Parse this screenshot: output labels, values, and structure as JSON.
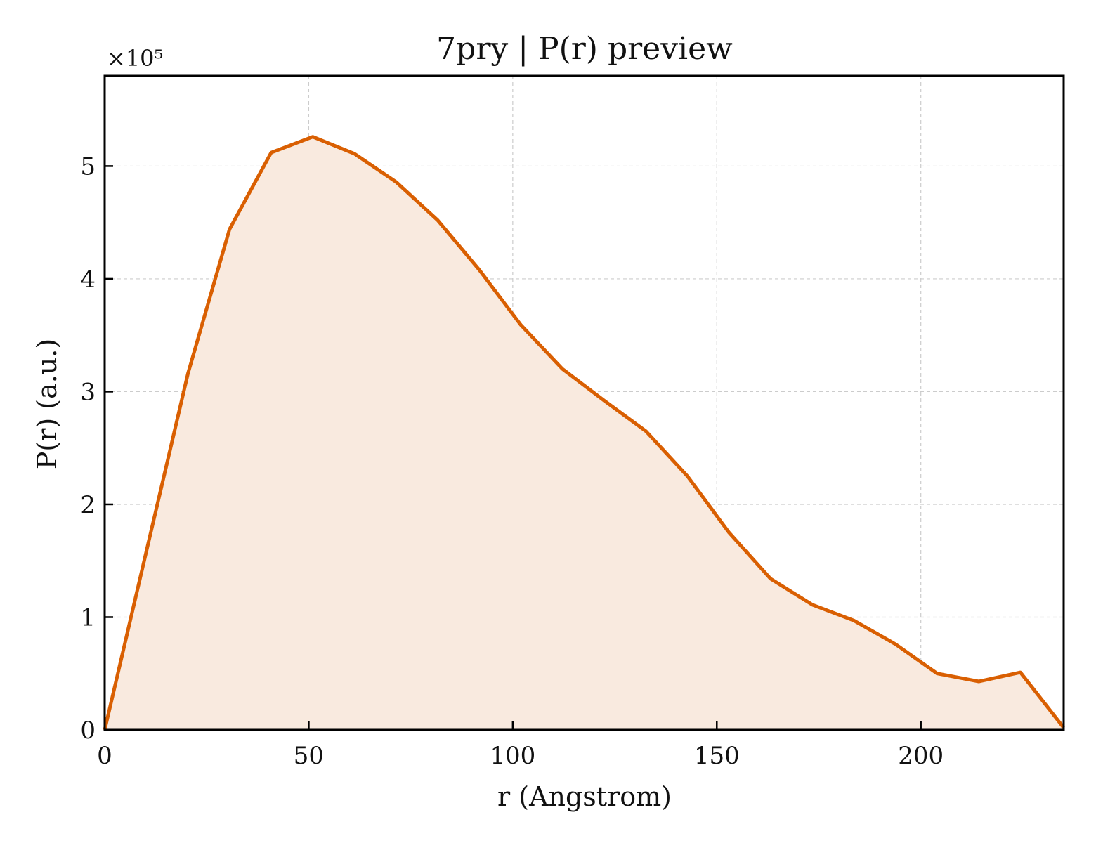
{
  "chart_data": {
    "type": "area",
    "title": "7pry | P(r) preview",
    "xlabel": "r (Angstrom)",
    "ylabel": "P(r) (a.u.)",
    "y_multiplier_label": "×10⁵",
    "xlim": [
      0,
      235
    ],
    "ylim": [
      0,
      5.8
    ],
    "xticks": [
      0,
      50,
      100,
      150,
      200
    ],
    "yticks": [
      0,
      1,
      2,
      3,
      4,
      5
    ],
    "grid": true,
    "line_color": "#d95f02",
    "fill_color": "#f9eadf",
    "series": [
      {
        "x": [
          0,
          10.2,
          20.4,
          30.6,
          40.8,
          51.0,
          61.2,
          71.4,
          81.6,
          91.8,
          102.0,
          112.2,
          122.4,
          132.6,
          142.8,
          153.0,
          163.2,
          173.4,
          183.6,
          193.8,
          204.0,
          214.2,
          224.4,
          235.0
        ],
        "y": [
          0.0,
          1.58,
          3.16,
          4.44,
          5.12,
          5.26,
          5.11,
          4.86,
          4.52,
          4.08,
          3.59,
          3.2,
          2.92,
          2.65,
          2.25,
          1.75,
          1.34,
          1.11,
          0.97,
          0.76,
          0.5,
          0.43,
          0.51,
          0.02
        ]
      }
    ]
  }
}
